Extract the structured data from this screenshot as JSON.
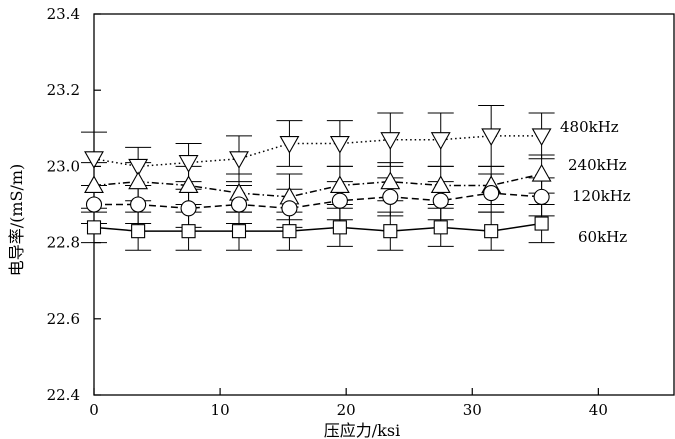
{
  "chart_data": {
    "type": "line",
    "title": "",
    "xlabel": "压应力/ksi",
    "ylabel": "电导率/(mS/m)",
    "xlim": [
      0,
      46
    ],
    "ylim": [
      22.4,
      23.4
    ],
    "x_ticks": [
      0,
      10,
      20,
      30,
      40
    ],
    "y_ticks": [
      22.4,
      22.6,
      22.8,
      23.0,
      23.2,
      23.4
    ],
    "y_tick_labels": [
      "22.4",
      "22.6",
      "22.8",
      "23.0",
      "23.2",
      "23.4"
    ],
    "grid": false,
    "legend": "inline labels at right end of each series",
    "x": [
      0,
      3.5,
      7.5,
      11.5,
      15.5,
      19.5,
      23.5,
      27.5,
      31.5,
      35.5
    ],
    "series": [
      {
        "name": "480kHz",
        "marker": "triangle-down",
        "linestyle": "dotted",
        "values": [
          23.02,
          23.0,
          23.01,
          23.02,
          23.06,
          23.06,
          23.07,
          23.07,
          23.08,
          23.08
        ],
        "error": [
          0.07,
          0.05,
          0.05,
          0.06,
          0.06,
          0.06,
          0.07,
          0.07,
          0.08,
          0.06
        ]
      },
      {
        "name": "240kHz",
        "marker": "triangle-up",
        "linestyle": "dashdot",
        "values": [
          22.95,
          22.96,
          22.95,
          22.93,
          22.92,
          22.95,
          22.96,
          22.95,
          22.95,
          22.98
        ],
        "error": [
          0.06,
          0.05,
          0.05,
          0.05,
          0.06,
          0.05,
          0.05,
          0.05,
          0.05,
          0.05
        ]
      },
      {
        "name": "120kHz",
        "marker": "circle",
        "linestyle": "dashed",
        "values": [
          22.9,
          22.9,
          22.89,
          22.9,
          22.89,
          22.91,
          22.92,
          22.91,
          22.93,
          22.92
        ],
        "error": [
          0.05,
          0.05,
          0.05,
          0.05,
          0.05,
          0.05,
          0.05,
          0.05,
          0.05,
          0.05
        ]
      },
      {
        "name": "60kHz",
        "marker": "square",
        "linestyle": "solid",
        "values": [
          22.84,
          22.83,
          22.83,
          22.83,
          22.83,
          22.84,
          22.83,
          22.84,
          22.83,
          22.85
        ],
        "error": [
          0.04,
          0.05,
          0.05,
          0.05,
          0.05,
          0.05,
          0.05,
          0.05,
          0.05,
          0.05
        ]
      }
    ]
  }
}
